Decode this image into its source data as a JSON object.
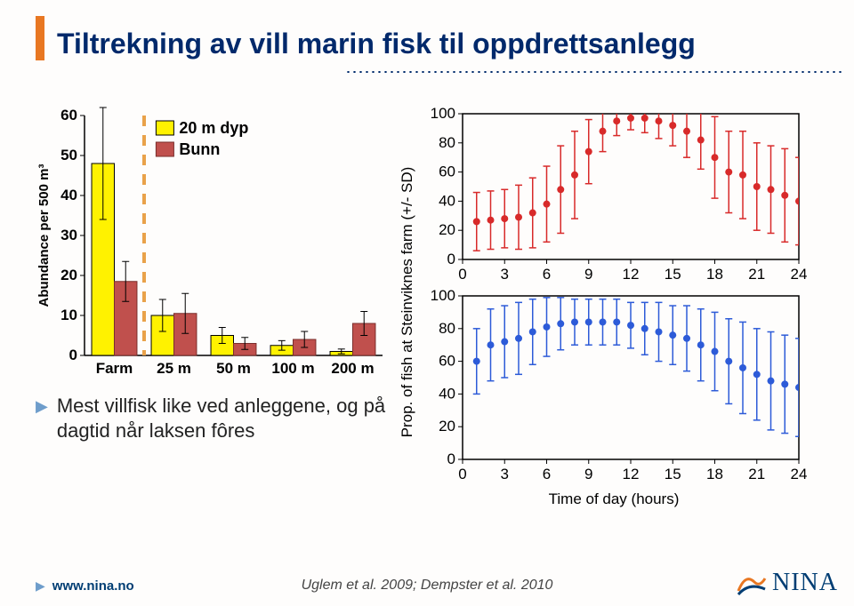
{
  "title": "Tiltrekning av vill marin fisk til oppdrettsanlegg",
  "barChart": {
    "ylabel": "Abundance per 500 m³",
    "ylim": [
      0,
      60
    ],
    "ytick_step": 10,
    "categories": [
      "Farm",
      "25 m",
      "50 m",
      "100 m",
      "200 m"
    ],
    "series": [
      {
        "name": "20 m dyp",
        "color": "#fff200",
        "border": "#000000",
        "values": [
          48,
          10,
          5,
          2.5,
          1
        ],
        "err": [
          14,
          4,
          2,
          1.2,
          0.6
        ]
      },
      {
        "name": "Bunn",
        "color": "#c0504d",
        "border": "#7a2e2c",
        "values": [
          18.5,
          10.5,
          3,
          4,
          8
        ],
        "err": [
          5,
          5,
          1.5,
          2,
          3
        ]
      }
    ],
    "bar_width": 0.38,
    "divider_after_index": 0,
    "divider_color": "#e9a24a",
    "tick_fontsize": 17,
    "label_fontsize": 15,
    "legend_fontsize": 18
  },
  "bulletText": "Mest villfisk like ved anleggene, og på dagtid når laksen fôres",
  "timePanels": {
    "ylabel": "Prop. of fish at Steinviknes farm (+/- SD)",
    "xlabel": "Time of day (hours)",
    "xlim": [
      0,
      24
    ],
    "xtick_step": 3,
    "panels": [
      {
        "color": "#d82a2a",
        "ylim": [
          0,
          100
        ],
        "y_ticks": [
          0,
          20,
          40,
          60,
          80,
          100
        ],
        "x": [
          1,
          2,
          3,
          4,
          5,
          6,
          7,
          8,
          9,
          10,
          11,
          12,
          13,
          14,
          15,
          16,
          17,
          18,
          19,
          20,
          21,
          22,
          23,
          24
        ],
        "y": [
          26,
          27,
          28,
          29,
          32,
          38,
          48,
          58,
          74,
          88,
          95,
          97,
          97,
          95,
          92,
          88,
          82,
          70,
          60,
          58,
          50,
          48,
          44,
          40
        ],
        "sd": [
          20,
          20,
          20,
          22,
          24,
          26,
          30,
          30,
          22,
          14,
          10,
          8,
          10,
          12,
          14,
          18,
          20,
          28,
          28,
          30,
          30,
          30,
          32,
          30
        ]
      },
      {
        "color": "#2d5bd8",
        "ylim": [
          0,
          100
        ],
        "y_ticks": [
          0,
          20,
          40,
          60,
          80,
          100
        ],
        "x": [
          1,
          2,
          3,
          4,
          5,
          6,
          7,
          8,
          9,
          10,
          11,
          12,
          13,
          14,
          15,
          16,
          17,
          18,
          19,
          20,
          21,
          22,
          23,
          24
        ],
        "y": [
          60,
          70,
          72,
          74,
          78,
          81,
          83,
          84,
          84,
          84,
          84,
          82,
          80,
          78,
          76,
          74,
          70,
          66,
          60,
          56,
          52,
          48,
          46,
          44
        ],
        "sd": [
          20,
          22,
          22,
          22,
          20,
          18,
          16,
          14,
          14,
          14,
          14,
          14,
          16,
          18,
          18,
          20,
          22,
          24,
          26,
          28,
          28,
          30,
          30,
          30
        ]
      }
    ],
    "tick_fontsize": 17
  },
  "footer": {
    "link": "www.nina.no",
    "citation": "Uglem et al. 2009; Dempster et al. 2010",
    "logo_text": "NINA"
  },
  "colors": {
    "accent_orange": "#e87722",
    "title_navy": "#00296b",
    "bullet_blue": "#6e9dcb",
    "background": "#fefdfc"
  }
}
